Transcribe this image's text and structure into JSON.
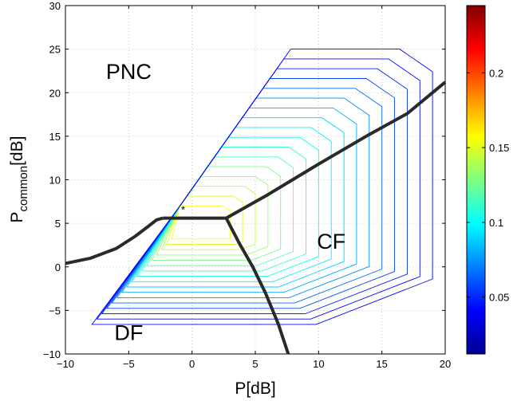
{
  "chart_data": {
    "type": "contour",
    "title": "",
    "xlabel": "P[dB]",
    "ylabel": "P",
    "ylabel_subscript": "common",
    "ylabel_suffix": "[dB]",
    "xlim": [
      -10,
      20
    ],
    "ylim": [
      -10,
      30
    ],
    "xticks": [
      -10,
      -5,
      0,
      5,
      10,
      15,
      20
    ],
    "yticks": [
      -10,
      -5,
      0,
      5,
      10,
      15,
      20,
      25,
      30
    ],
    "grid": true,
    "regions": [
      {
        "label": "PNC",
        "x": -5,
        "y": 22.5
      },
      {
        "label": "CF",
        "x": 11,
        "y": 3
      },
      {
        "label": "DF",
        "x": -5,
        "y": -7.5
      }
    ],
    "optimum_marker": {
      "symbol": "*",
      "x": -0.7,
      "y": 6.6
    },
    "boundary_curves": [
      {
        "name": "pnc-df-boundary",
        "points": [
          [
            -10,
            0.4
          ],
          [
            -8,
            1.0
          ],
          [
            -6,
            2.1
          ],
          [
            -4.5,
            3.5
          ],
          [
            -3.5,
            4.6
          ],
          [
            -2.8,
            5.4
          ],
          [
            -2.3,
            5.6
          ]
        ]
      },
      {
        "name": "df-cf-plateau",
        "points": [
          [
            -2.3,
            5.6
          ],
          [
            2.7,
            5.6
          ]
        ]
      },
      {
        "name": "pnc-cf-boundary",
        "points": [
          [
            2.7,
            5.6
          ],
          [
            6,
            8.3
          ],
          [
            10,
            11.8
          ],
          [
            14,
            15.2
          ],
          [
            17,
            17.6
          ],
          [
            20,
            21.2
          ]
        ]
      },
      {
        "name": "cf-df-boundary",
        "points": [
          [
            2.7,
            5.6
          ],
          [
            3.7,
            2.8
          ],
          [
            4.8,
            0
          ],
          [
            5.8,
            -3
          ],
          [
            6.8,
            -6.5
          ],
          [
            7.6,
            -10
          ]
        ]
      }
    ],
    "contour_levels": [
      0.02,
      0.04,
      0.06,
      0.08,
      0.1,
      0.12,
      0.14,
      0.16,
      0.18,
      0.2,
      0.22
    ],
    "colorbar": {
      "colormap": "jet",
      "range": [
        0.012,
        0.245
      ],
      "ticks": [
        0.05,
        0.1,
        0.15,
        0.2
      ],
      "tick_labels": [
        "0.05",
        "0.1",
        "0.15",
        "0.2"
      ]
    }
  }
}
